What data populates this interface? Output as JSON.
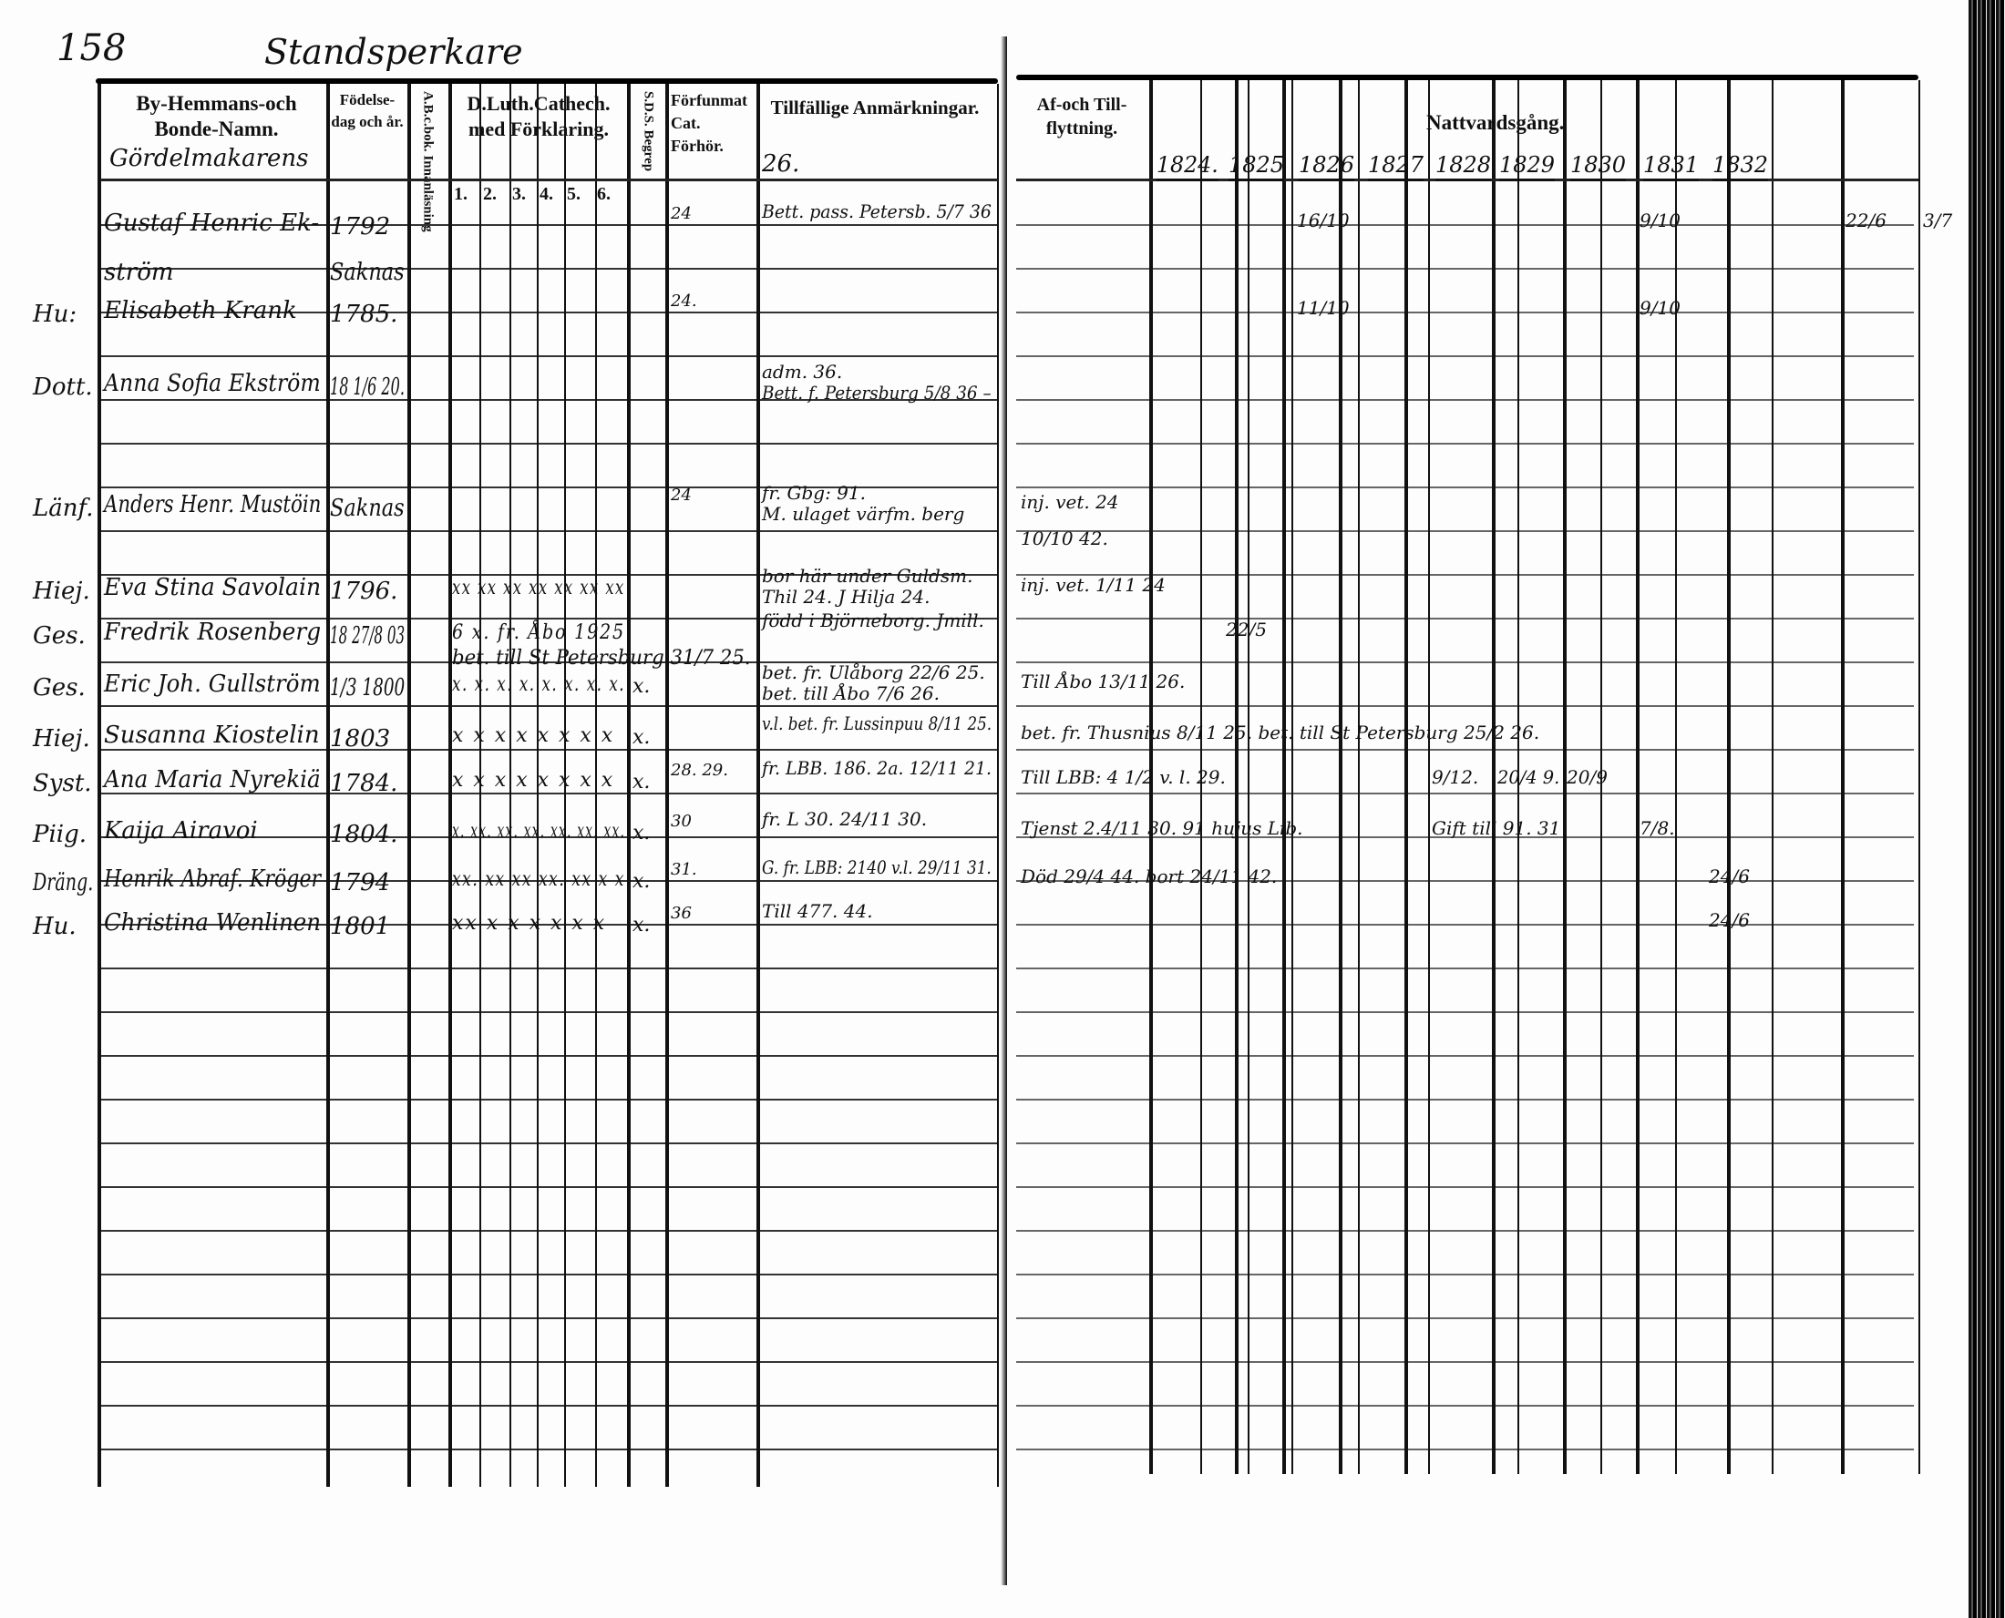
{
  "left_page": {
    "page_number": "158",
    "heading": "Standsperkare",
    "headers": {
      "name": "By-Hemmans-och Bonde-Namn.",
      "birth": "Födelse-dag och år.",
      "abc": "A.B.c.bok. Innanläsning",
      "catechism": "D.Luth.Cathech. med Förklaring.",
      "catechism_numbers": [
        "1.",
        "2.",
        "3.",
        "4.",
        "5.",
        "6."
      ],
      "sds": "S.D.S. Begrep",
      "forhor": "Förfunmat Cat. Förhör.",
      "remarks": "Tillfällige Anmärkningar."
    },
    "section_label": "Gördelmakarens",
    "remarks_top": "26.",
    "rows": [
      {
        "marker": "",
        "name": "Gustaf Henric Ek-",
        "name2": "ström",
        "birth": "1792",
        "birth2": "Saknas",
        "marks": "",
        "sds": "",
        "forhor": "24",
        "remark": "Bett. pass. Petersb. 5/7 36",
        "remark2": ""
      },
      {
        "marker": "Hu:",
        "name": "Elisabeth Krank",
        "name2": "",
        "birth": "1785.",
        "birth2": "",
        "marks": "",
        "sds": "",
        "forhor": "24.",
        "remark": "",
        "remark2": ""
      },
      {
        "marker": "Dott.",
        "name": "Anna Sofia Ekström",
        "name2": "",
        "birth": "18 1/6 20.",
        "birth2": "",
        "marks": "",
        "sds": "",
        "forhor": "",
        "remark": "adm. 36.",
        "remark2": "Bett. f. Petersburg 5/8 36 –"
      },
      {
        "marker": "Länf.",
        "name": "Anders Henr. Mustöin",
        "name2": "",
        "birth": "Saknas",
        "birth2": "",
        "marks": "",
        "sds": "",
        "forhor": "24",
        "remark": "fr. Gbg: 91.",
        "remark2": "M. ulaget värfm. berg"
      },
      {
        "marker": "Hiej.",
        "name": "Eva Stina Savolain",
        "name2": "",
        "birth": "1796.",
        "birth2": "",
        "marks": "xx xx xx xx xx xx xx",
        "sds": "",
        "forhor": "",
        "remark": "bor här under Guldsm.",
        "remark2": "Thil 24. J Hilja 24."
      },
      {
        "marker": "Ges.",
        "name": "Fredrik Rosenberg",
        "name2": "",
        "birth": "18 27/8 03",
        "birth2": "",
        "marks": "6 x. fr. Åbo 1925",
        "marks2": "bet. till St Petersburg 31/7 25.",
        "sds": "",
        "forhor": "",
        "remark": "född i Björneborg. Jmill.",
        "remark2": ""
      },
      {
        "marker": "Ges.",
        "name": "Eric Joh. Gullström",
        "name2": "",
        "birth": "1/3 1800",
        "birth2": "",
        "marks": "x. x. x. x. x. x. x. x.",
        "sds": "x.",
        "forhor": "",
        "remark": "bet. fr. Ulåborg 22/6 25.",
        "remark2": "bet. till Åbo 7/6 26."
      },
      {
        "marker": "Hiej.",
        "name": "Susanna Kiostelin",
        "name2": "",
        "birth": "1803",
        "birth2": "",
        "marks": "x x x x x x x x",
        "sds": "x.",
        "forhor": "",
        "remark": "v.l. bet. fr. Lussinpuu 8/11 25.",
        "remark2": ""
      },
      {
        "marker": "Syst.",
        "name": "Ana Maria Nyrekiä",
        "name2": "",
        "birth": "1784.",
        "birth2": "",
        "marks": "x x x x x x x x",
        "sds": "x.",
        "forhor": "28. 29.",
        "remark": "fr. LBB. 186. 2a. 12/11 21.",
        "remark2": ""
      },
      {
        "marker": "Piig.",
        "name": "Kaija Airavoi",
        "name2": "",
        "birth": "1804.",
        "birth2": "",
        "marks": "x. xx. xx. xx. xx. xx. xx.",
        "sds": "x.",
        "forhor": "30",
        "remark": "fr. L 30. 24/11 30.",
        "remark2": ""
      },
      {
        "marker": "Dräng.",
        "name": "Henrik Abraf. Kröger",
        "name2": "",
        "birth": "1794",
        "birth2": "",
        "marks": "xx. xx xx xx. xx x x",
        "sds": "x.",
        "forhor": "31.",
        "remark": "G. fr. LBB: 2140 v.l. 29/11 31.",
        "remark2": ""
      },
      {
        "marker": "Hu.",
        "name": "Christina Wenlinen",
        "name2": "",
        "birth": "1801",
        "birth2": "",
        "marks": "xx x x x x x x",
        "sds": "x.",
        "forhor": "36",
        "remark": "Till 477. 44.",
        "remark2": ""
      }
    ]
  },
  "right_page": {
    "headers": {
      "moving": "Af-och Till-flyttning.",
      "communion": "Nattvardsgång."
    },
    "years": [
      "1824.",
      "1825",
      "1826",
      "1827",
      "1828",
      "1829",
      "1830",
      "1831",
      "1832"
    ],
    "entries": [
      {
        "col": "1826",
        "row": 1,
        "text": "16/10"
      },
      {
        "col": "1826",
        "row": 2,
        "text": "11/10"
      },
      {
        "col": "1831",
        "row": 1,
        "text": "9/10"
      },
      {
        "col": "1831",
        "row": 2,
        "text": "9/10"
      },
      {
        "col": "extra",
        "row": 1,
        "text": "22/6"
      },
      {
        "col": "margin",
        "row": 1,
        "text": "3/7"
      },
      {
        "col": "moving",
        "row": 4,
        "text": "inj. vet. 24"
      },
      {
        "col": "moving",
        "row": 4.5,
        "text": "10/10 42."
      },
      {
        "col": "moving",
        "row": 5,
        "text": "inj. vet. 1/11 24"
      },
      {
        "col": "1825",
        "row": 6,
        "text": "22/5"
      },
      {
        "col": "moving",
        "row": 7,
        "text": "Till Åbo 13/11 26."
      },
      {
        "col": "moving",
        "row": 8,
        "text": "bet. fr. Thusnius 8/11 25. bet. till St Petersburg 25/2 26."
      },
      {
        "col": "moving",
        "row": 9,
        "text": "Till LBB: 4 1/2 v. l. 29."
      },
      {
        "col": "1828",
        "row": 9,
        "text": "9/12."
      },
      {
        "col": "1829",
        "row": 9,
        "text": "20/4 9."
      },
      {
        "col": "1830",
        "row": 9,
        "text": "20/9"
      },
      {
        "col": "moving",
        "row": 10,
        "text": "Tjenst 2.4/11 30. 91 hujus Lib."
      },
      {
        "col": "1828",
        "row": 10,
        "text": "Gift till 91. 31"
      },
      {
        "col": "1831",
        "row": 10,
        "text": "7/8."
      },
      {
        "col": "moving",
        "row": 11,
        "text": "Död 29/4 44. bort 24/11 42."
      },
      {
        "col": "1832",
        "row": 11,
        "text": "24/6"
      },
      {
        "col": "1832",
        "row": 12,
        "text": "24/6"
      }
    ]
  }
}
